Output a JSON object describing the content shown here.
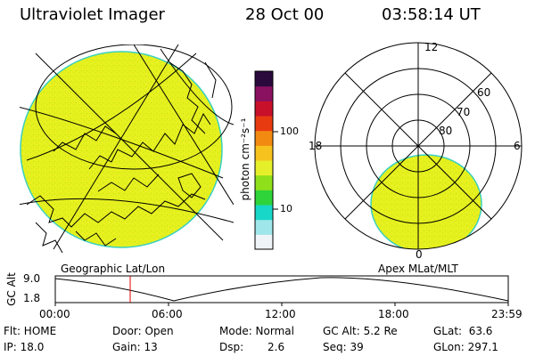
{
  "header": {
    "title": "Ultraviolet Imager",
    "date": "28 Oct 00",
    "time": "03:58:14 UT"
  },
  "colorbar": {
    "unit_label": "photon cm⁻²s⁻¹",
    "ticks": [
      {
        "label": "100",
        "value": 100
      },
      {
        "label": "10",
        "value": 10
      }
    ],
    "colors": [
      "#eef4f8",
      "#9fe6ea",
      "#17d7c8",
      "#2ed43a",
      "#8fe01a",
      "#e6f02a",
      "#f6c21e",
      "#f28a12",
      "#e83a10",
      "#c8102a",
      "#8a1060",
      "#2a0a3c"
    ]
  },
  "left_panel": {
    "label": "Geographic Lat/Lon",
    "fill_color": "#e6f01e"
  },
  "right_panel": {
    "label": "Apex MLat/MLT",
    "mlt_labels": {
      "top": "12",
      "left": "18",
      "right": "6",
      "bottom": "0"
    },
    "lat_labels": [
      "60",
      "70",
      "80"
    ],
    "fill_color": "#e6f01e"
  },
  "timeline": {
    "ylabel": "GC Alt",
    "y_ticks": [
      "9.0",
      "1.8"
    ],
    "x_ticks": [
      "00:00",
      "06:00",
      "12:00",
      "18:00",
      "23:59"
    ],
    "marker_color": "#e00000"
  },
  "status": {
    "row1": {
      "flt": "Flt: HOME",
      "door": "Door: Open",
      "mode": "Mode: Normal",
      "gc_alt": "GC Alt: 5.2 Re",
      "glat": "GLat:  63.6"
    },
    "row2": {
      "ip": "IP: 18.0",
      "gain": "Gain: 13",
      "dsp_label": "Dsp:",
      "dsp_value": "2.6",
      "seq": "Seq: 39",
      "glon": "GLon: 297.1"
    }
  }
}
